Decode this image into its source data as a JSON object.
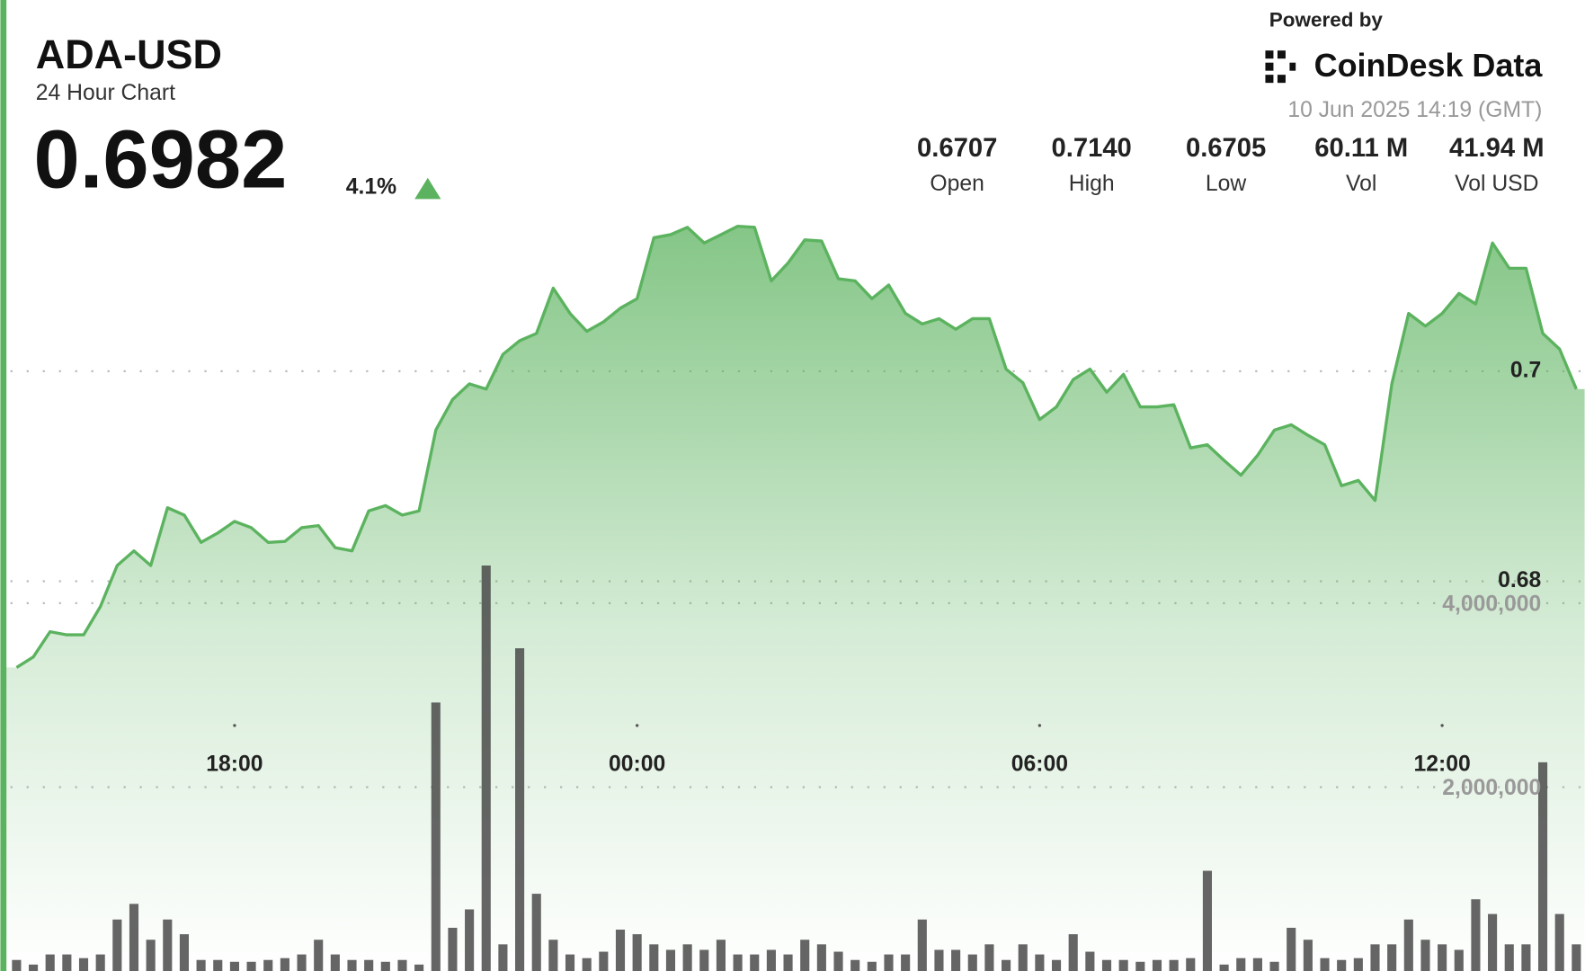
{
  "header": {
    "symbol": "ADA-USD",
    "subtitle": "24 Hour Chart",
    "price": "0.6982",
    "change": "4.1%",
    "powered_by": "Powered by",
    "brand": "CoinDesk Data",
    "timestamp": "10 Jun 2025 14:19 (GMT)",
    "stats": [
      {
        "value": "0.6707",
        "label": "Open"
      },
      {
        "value": "0.7140",
        "label": "High"
      },
      {
        "value": "0.6705",
        "label": "Low"
      },
      {
        "value": "60.11 M",
        "label": "Vol"
      },
      {
        "value": "41.94 M",
        "label": "Vol USD"
      }
    ]
  },
  "chart_data": {
    "type": "area",
    "categories": [
      null,
      null,
      null,
      null,
      null,
      null,
      null,
      null,
      null,
      null,
      null,
      null,
      null,
      "18:00",
      null,
      null,
      null,
      null,
      null,
      null,
      null,
      null,
      null,
      null,
      null,
      null,
      null,
      null,
      null,
      null,
      null,
      null,
      null,
      null,
      null,
      null,
      null,
      "00:00",
      null,
      null,
      null,
      null,
      null,
      null,
      null,
      null,
      null,
      null,
      null,
      null,
      null,
      null,
      null,
      null,
      null,
      null,
      null,
      null,
      null,
      null,
      null,
      "06:00",
      null,
      null,
      null,
      null,
      null,
      null,
      null,
      null,
      null,
      null,
      null,
      null,
      null,
      null,
      null,
      null,
      null,
      null,
      null,
      null,
      null,
      null,
      null,
      "12:00",
      null,
      null,
      null,
      null,
      null,
      null,
      null,
      null
    ],
    "series": [
      {
        "color": "#5cb35f",
        "values": [
          0.6718,
          0.6728,
          0.6752,
          0.6749,
          0.6749,
          0.6776,
          0.6815,
          0.6829,
          0.6815,
          0.687,
          0.6863,
          0.6837,
          0.6846,
          0.6857,
          0.6851,
          0.6837,
          0.6838,
          0.6851,
          0.6853,
          0.6832,
          0.6829,
          0.6867,
          0.6872,
          0.6863,
          0.6867,
          0.6944,
          0.6973,
          0.6988,
          0.6983,
          0.7016,
          0.7029,
          0.7036,
          0.7079,
          0.7055,
          0.7038,
          0.7047,
          0.706,
          0.7069,
          0.7127,
          0.713,
          0.7137,
          0.7122,
          0.713,
          0.7138,
          0.7137,
          0.7086,
          0.7103,
          0.7125,
          0.7124,
          0.7088,
          0.7086,
          0.7069,
          0.7082,
          0.7055,
          0.7045,
          0.705,
          0.704,
          0.705,
          0.705,
          0.7002,
          0.6989,
          0.6954,
          0.6966,
          0.6992,
          0.7002,
          0.698,
          0.6997,
          0.6966,
          0.6966,
          0.6968,
          0.6927,
          0.693,
          0.6915,
          0.6901,
          0.692,
          0.6944,
          0.6949,
          0.6939,
          0.693,
          0.6891,
          0.6896,
          0.6877,
          0.6988,
          0.7055,
          0.7043,
          0.7055,
          0.7074,
          0.7064,
          0.7122,
          0.7098,
          0.7098,
          0.7036,
          0.7021,
          0.6983
        ]
      },
      {
        "type": "bar",
        "axis": "y2",
        "color": "#4a4a4a",
        "values": [
          120000,
          70000,
          180000,
          180000,
          140000,
          180000,
          560000,
          730000,
          340000,
          560000,
          400000,
          120000,
          120000,
          100000,
          100000,
          120000,
          140000,
          180000,
          340000,
          180000,
          120000,
          120000,
          100000,
          120000,
          70000,
          2920000,
          470000,
          670000,
          4410000,
          290000,
          3510000,
          840000,
          340000,
          180000,
          140000,
          210000,
          450000,
          400000,
          290000,
          230000,
          290000,
          230000,
          340000,
          180000,
          180000,
          230000,
          180000,
          340000,
          290000,
          210000,
          120000,
          100000,
          180000,
          180000,
          560000,
          230000,
          230000,
          180000,
          290000,
          120000,
          290000,
          180000,
          120000,
          400000,
          210000,
          120000,
          120000,
          100000,
          120000,
          120000,
          140000,
          1090000,
          70000,
          140000,
          140000,
          100000,
          470000,
          340000,
          140000,
          120000,
          140000,
          290000,
          290000,
          560000,
          340000,
          290000,
          230000,
          780000,
          620000,
          290000,
          290000,
          2270000,
          620000,
          290000
        ]
      }
    ],
    "ylim": [
      0.6429,
      0.7161
    ],
    "yticks": [
      0.68,
      0.7
    ],
    "y2lim": [
      0,
      10000000
    ],
    "y2ticks": [
      {
        "value": 2000000,
        "label": "2,000,000"
      },
      {
        "value": 4000000,
        "label": "4,000,000"
      }
    ],
    "grid": true
  }
}
